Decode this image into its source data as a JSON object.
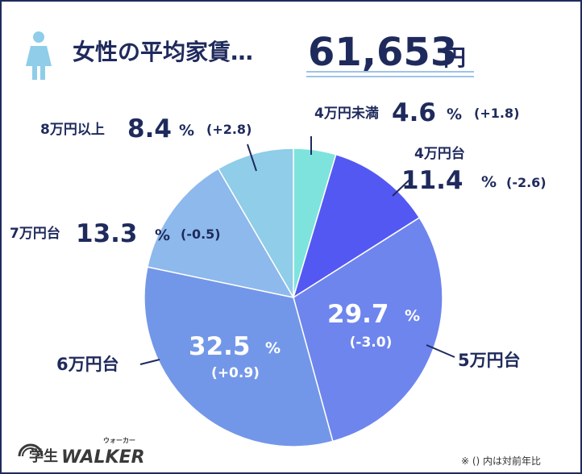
{
  "header": {
    "title": "女性の平均家賃…",
    "amount": "61,653",
    "unit": "円"
  },
  "note": "※ () 内は対前年比",
  "logo": {
    "text_left": "学生",
    "text_right": "WALKER",
    "ruby": "ウォーカー"
  },
  "colors": {
    "navy": "#1f2a5c",
    "underline": "#9fc4e6",
    "slice_under4": "#7ee3dd",
    "slice_4": "#5458f2",
    "slice_5": "#6e85ee",
    "slice_6": "#7397e8",
    "slice_7": "#8db9ec",
    "slice_8": "#8fcde9"
  },
  "chart_data": {
    "type": "pie",
    "title": "女性の平均家賃…61,653円",
    "slices": [
      {
        "label": "4万円未満",
        "value": 4.6,
        "value_text": "4.6",
        "pct": "%",
        "change": "(+1.8)"
      },
      {
        "label": "4万円台",
        "value": 11.4,
        "value_text": "11.4",
        "pct": "%",
        "change": "(-2.6)"
      },
      {
        "label": "5万円台",
        "value": 29.7,
        "value_text": "29.7",
        "pct": "%",
        "change": "(-3.0)"
      },
      {
        "label": "6万円台",
        "value": 32.5,
        "value_text": "32.5",
        "pct": "%",
        "change": "(+0.9)"
      },
      {
        "label": "7万円台",
        "value": 13.3,
        "value_text": "13.3",
        "pct": "%",
        "change": "(-0.5)"
      },
      {
        "label": "8万円以上",
        "value": 8.4,
        "value_text": "8.4",
        "pct": "%",
        "change": "(+2.8)"
      }
    ]
  }
}
